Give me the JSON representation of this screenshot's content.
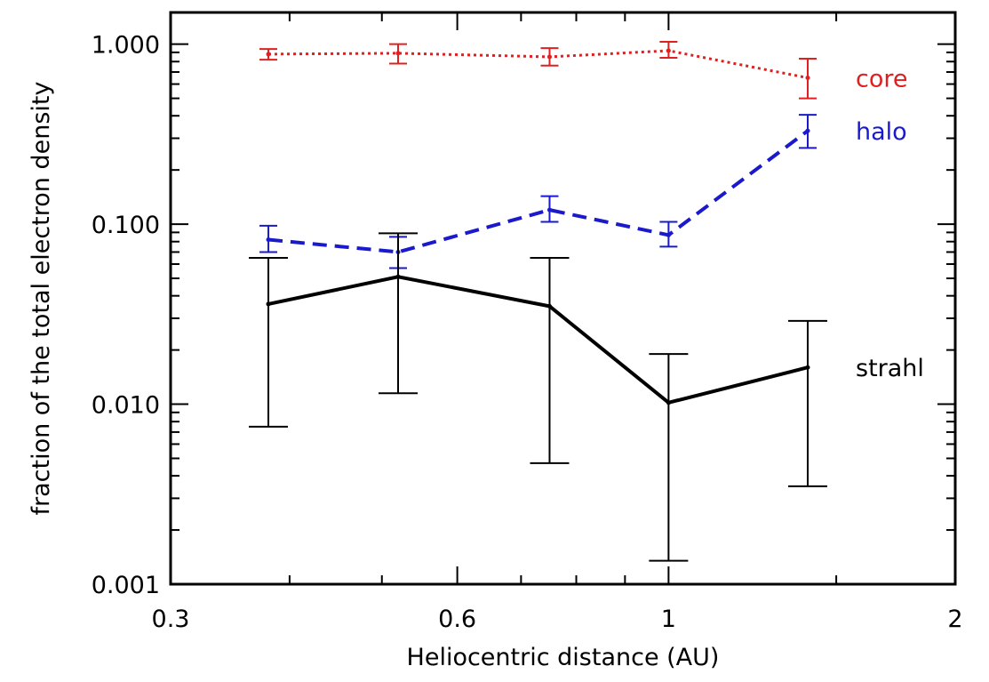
{
  "chart_data": {
    "type": "line",
    "xlabel": "Heliocentric distance (AU)",
    "ylabel": "fraction of the total electron density",
    "x_scale": "log",
    "y_scale": "log",
    "xlim": [
      0.3,
      2
    ],
    "ylim": [
      0.001,
      1.5
    ],
    "x_tick_labels": [
      "0.3",
      "0.6",
      "1",
      "2"
    ],
    "y_tick_labels": [
      "0.001",
      "0.010",
      "0.100",
      "1.000"
    ],
    "x": [
      0.38,
      0.52,
      0.75,
      1.0,
      1.4
    ],
    "series": [
      {
        "name": "core",
        "color": "#e02020",
        "line_style": "dotted",
        "values": [
          0.88,
          0.89,
          0.85,
          0.92,
          0.65
        ],
        "err_low": [
          0.82,
          0.78,
          0.76,
          0.84,
          0.5
        ],
        "err_high": [
          0.94,
          1.0,
          0.95,
          1.03,
          0.83
        ]
      },
      {
        "name": "halo",
        "color": "#1a1acc",
        "line_style": "dashed",
        "values": [
          0.082,
          0.07,
          0.12,
          0.087,
          0.33
        ],
        "err_low": [
          0.07,
          0.057,
          0.103,
          0.075,
          0.265
        ],
        "err_high": [
          0.098,
          0.085,
          0.143,
          0.103,
          0.405
        ]
      },
      {
        "name": "strahl",
        "color": "#000000",
        "line_style": "solid",
        "values": [
          0.036,
          0.051,
          0.035,
          0.0102,
          0.016
        ],
        "err_low": [
          0.0075,
          0.0115,
          0.0047,
          0.00135,
          0.0035
        ],
        "err_high": [
          0.065,
          0.089,
          0.065,
          0.019,
          0.029
        ]
      }
    ],
    "grid": false,
    "legend": "inline labels at right of each series"
  }
}
